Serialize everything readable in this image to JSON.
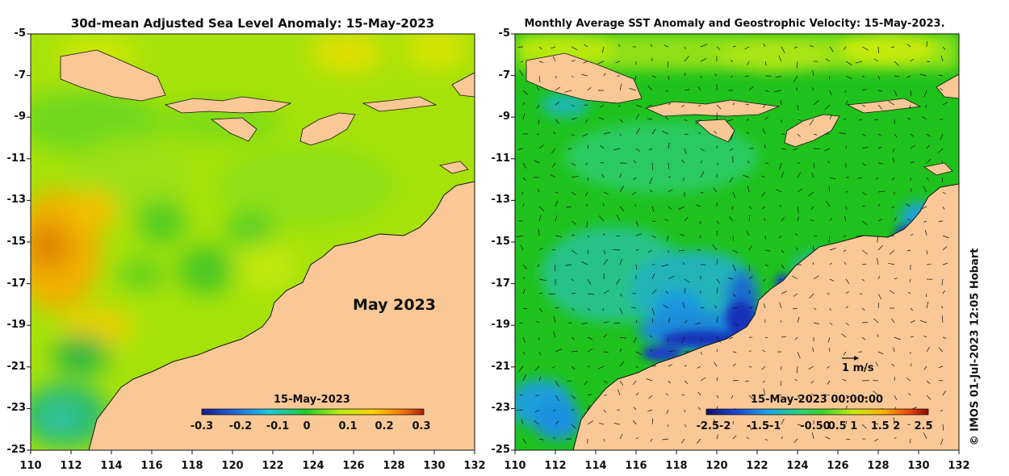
{
  "left_panel": {
    "title": "30d-mean Adjusted Sea Level Anomaly: 15-May-2023",
    "map_label": "May 2023",
    "colorbar_title": "15-May-2023",
    "colorbar_labels": [
      "-0.3",
      "-0.2",
      "-0.1",
      "0",
      "0.1",
      "0.2",
      "0.3"
    ]
  },
  "right_panel": {
    "title": "Monthly Average SST Anomaly  and Geostrophic Velocity: 15-May-2023.",
    "colorbar_title": "15-May-2023 00:00:00",
    "colorbar_labels": [
      "-2.5-2",
      "-1.5-1",
      "-0.50",
      "0.5 1",
      "1.5 2",
      "2.5"
    ],
    "speed_label": "1 m/s"
  },
  "y_ticks": [
    "-5",
    "-7",
    "-9",
    "-11",
    "-13",
    "-15",
    "-17",
    "-19",
    "-21",
    "-23",
    "-25"
  ],
  "x_ticks": [
    "110",
    "112",
    "114",
    "116",
    "118",
    "120",
    "122",
    "124",
    "126",
    "128",
    "130",
    "132"
  ],
  "credit": "© IMOS 01-Jul-2023 12:05 Hobart",
  "colors": {
    "land": "#fac896",
    "ssl_base": "#a6e20a",
    "sst_base": "#1fc21c",
    "cb_ssl": [
      "#1a1a8c",
      "#1c6ae0",
      "#19c8e0",
      "#1fd02a",
      "#b9ee0c",
      "#ffd400",
      "#ff7a00",
      "#b01a00"
    ],
    "cb_sst": [
      "#10106e",
      "#1a48d6",
      "#1aa8e6",
      "#2bd07a",
      "#36d62a",
      "#c6ec12",
      "#ffb000",
      "#e8400a",
      "#8c0a00"
    ]
  }
}
